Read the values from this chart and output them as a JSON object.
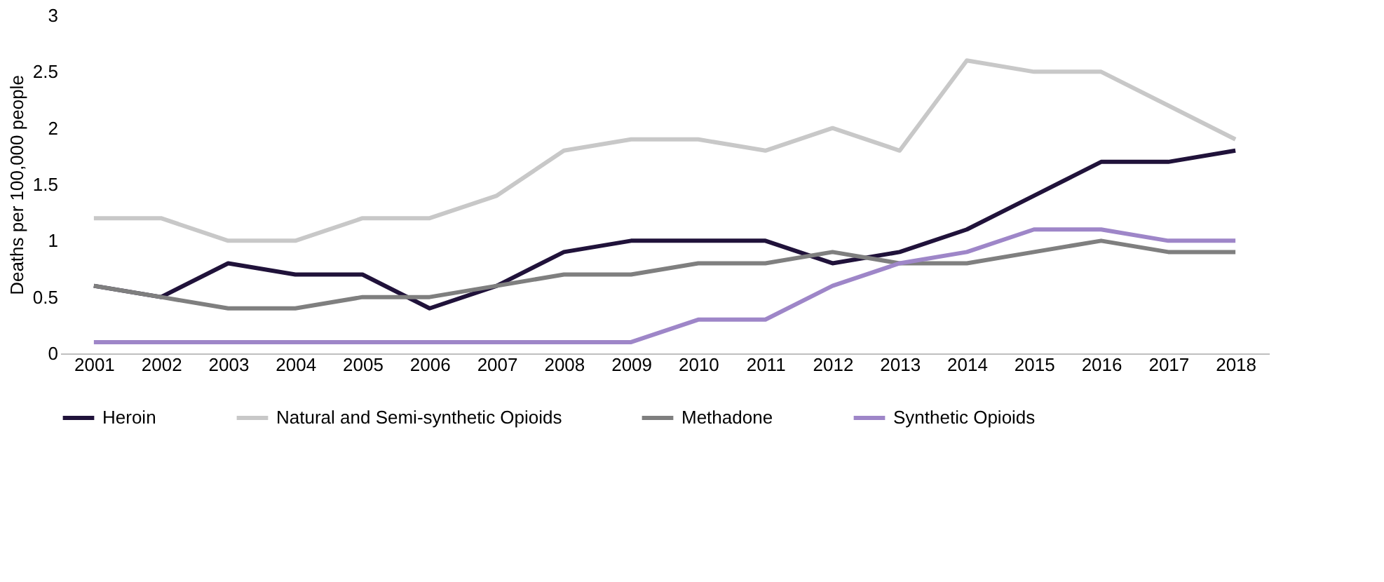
{
  "chart_data": {
    "type": "line",
    "ylabel": "Deaths per 100,000 people",
    "categories": [
      "2001",
      "2002",
      "2003",
      "2004",
      "2005",
      "2006",
      "2007",
      "2008",
      "2009",
      "2010",
      "2011",
      "2012",
      "2013",
      "2014",
      "2015",
      "2016",
      "2017",
      "2018"
    ],
    "series": [
      {
        "name": "Heroin",
        "color": "#20123a",
        "values": [
          0.6,
          0.5,
          0.8,
          0.7,
          0.7,
          0.4,
          0.6,
          0.9,
          1.0,
          1.0,
          1.0,
          0.8,
          0.9,
          1.1,
          1.4,
          1.7,
          1.7,
          1.8
        ]
      },
      {
        "name": "Natural and Semi-synthetic Opioids",
        "color": "#c8c8c8",
        "values": [
          1.2,
          1.2,
          1.0,
          1.0,
          1.2,
          1.2,
          1.4,
          1.8,
          1.9,
          1.9,
          1.8,
          2.0,
          1.8,
          2.6,
          2.5,
          2.5,
          2.2,
          1.9
        ]
      },
      {
        "name": "Methadone",
        "color": "#7f7f7f",
        "values": [
          0.6,
          0.5,
          0.4,
          0.4,
          0.5,
          0.5,
          0.6,
          0.7,
          0.7,
          0.8,
          0.8,
          0.9,
          0.8,
          0.8,
          0.9,
          1.0,
          0.9,
          0.9
        ]
      },
      {
        "name": "Synthetic Opioids",
        "color": "#9e86c8",
        "values": [
          0.1,
          0.1,
          0.1,
          0.1,
          0.1,
          0.1,
          0.1,
          0.1,
          0.1,
          0.3,
          0.3,
          0.6,
          0.8,
          0.9,
          1.1,
          1.1,
          1.0,
          1.0
        ]
      }
    ],
    "ylim": [
      0,
      3
    ],
    "yticks": [
      0,
      0.5,
      1,
      1.5,
      2,
      2.5,
      3
    ],
    "grid": false,
    "legend": "bottom",
    "marker": "none",
    "line_style": "solid"
  }
}
